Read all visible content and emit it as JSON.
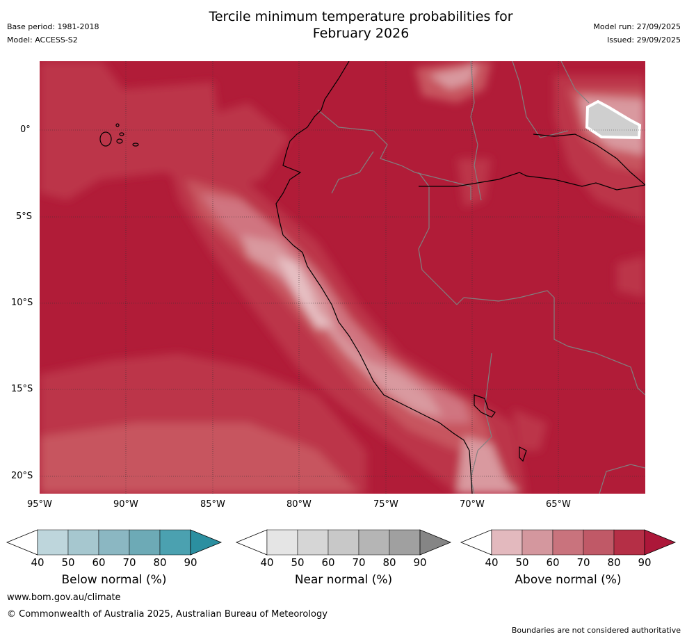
{
  "header": {
    "title_line1": "Tercile minimum temperature probabilities for",
    "title_line2": "February 2026",
    "base_period": "Base period: 1981-2018",
    "model": "Model: ACCESS-S2",
    "model_run": "Model run: 27/09/2025",
    "issued": "Issued: 29/09/2025"
  },
  "map": {
    "lon_ticks": [
      "95°W",
      "90°W",
      "85°W",
      "80°W",
      "75°W",
      "70°W",
      "65°W"
    ],
    "lat_ticks": [
      "0°",
      "5°S",
      "10°S",
      "15°S",
      "20°S"
    ],
    "colors": {
      "above_90": "#b11c38",
      "above_80": "#bc3449",
      "above_70": "#c7545f",
      "above_60": "#d07580",
      "above_50": "#d9999f",
      "above_40": "#e6bfc3",
      "near_60": "#cfcfcf",
      "land_border": "#808080",
      "coast": "#000000"
    }
  },
  "colorbars": [
    {
      "label": "Below normal (%)",
      "ticks": [
        "40",
        "50",
        "60",
        "70",
        "80",
        "90"
      ],
      "colors": [
        "#ffffff",
        "#bed6dc",
        "#a6c7cf",
        "#8bb7c2",
        "#6daab6",
        "#4ba1b0",
        "#2b8fa0"
      ]
    },
    {
      "label": "Near normal (%)",
      "ticks": [
        "40",
        "50",
        "60",
        "70",
        "80",
        "90"
      ],
      "colors": [
        "#ffffff",
        "#e5e5e5",
        "#d6d6d6",
        "#c8c8c8",
        "#b5b5b5",
        "#a0a0a0",
        "#858585"
      ]
    },
    {
      "label": "Above normal (%)",
      "ticks": [
        "40",
        "50",
        "60",
        "70",
        "80",
        "90"
      ],
      "colors": [
        "#ffffff",
        "#e3b9be",
        "#d4979e",
        "#c9737d",
        "#c05967",
        "#b52f46",
        "#ac1739"
      ]
    }
  ],
  "footer": {
    "website": "www.bom.gov.au/climate",
    "copyright": "© Commonwealth of Australia 2025, Australian Bureau of Meteorology",
    "disclaimer": "Boundaries are not considered authoritative"
  }
}
